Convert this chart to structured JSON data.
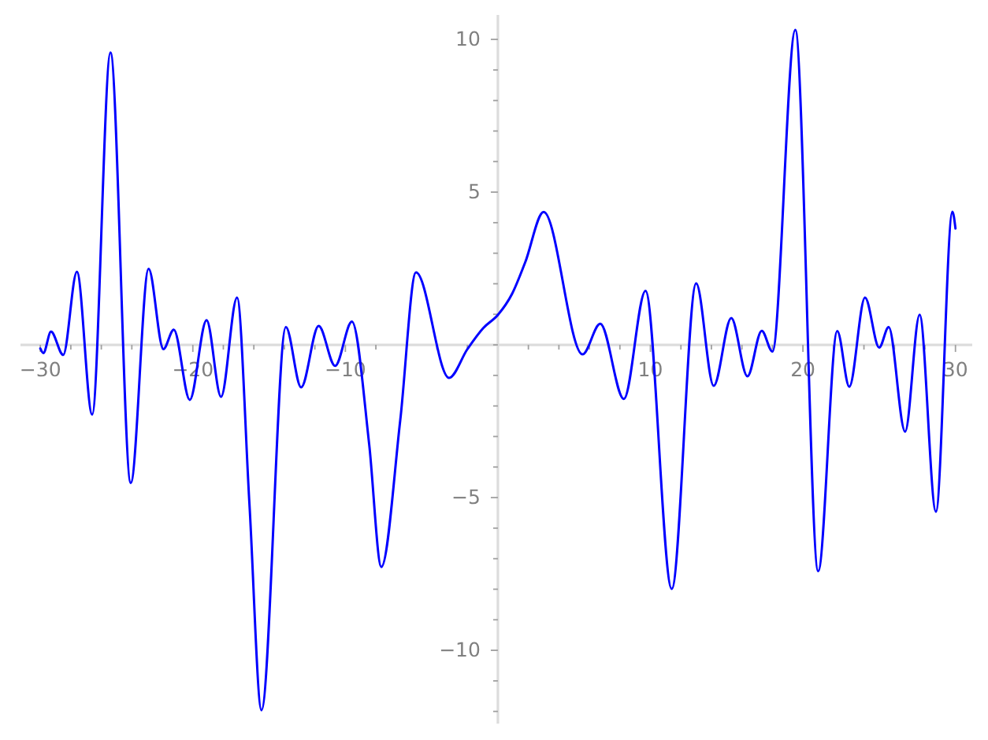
{
  "chart_data": {
    "type": "line",
    "x": [
      -30,
      -29.8,
      -29.3,
      -28.5,
      -27.6,
      -26.6,
      -25.4,
      -24.07,
      -22.9,
      -21.93,
      -21.25,
      -20.2,
      -19.1,
      -18.15,
      -17.1,
      -16.29,
      -15.5,
      -13.9,
      -12.9,
      -11.75,
      -10.67,
      -9.57,
      -8.44,
      -7.64,
      -6.4,
      -5.37,
      -3.2,
      -2.0,
      -0.96,
      0,
      0.93,
      1.79,
      3.0,
      5.55,
      6.71,
      8.26,
      9.68,
      11.4,
      13.0,
      14.15,
      15.3,
      16.36,
      17.3,
      18.0,
      19.5,
      21.0,
      22.25,
      23.04,
      24.07,
      25.0,
      25.62,
      26.7,
      27.65,
      28.72,
      29.8,
      30.0
    ],
    "values": [
      -0.12,
      -0.27,
      0.43,
      -0.33,
      2.39,
      -2.28,
      9.57,
      -4.52,
      2.49,
      -0.14,
      0.5,
      -1.8,
      0.81,
      -1.7,
      1.55,
      -5.2,
      -11.96,
      0.58,
      -1.39,
      0.62,
      -0.69,
      0.76,
      -3.25,
      -7.27,
      -2.46,
      2.37,
      -1.08,
      -0.14,
      0.55,
      0.98,
      1.67,
      2.7,
      4.35,
      -0.31,
      0.69,
      -1.77,
      1.77,
      -7.99,
      2.01,
      -1.34,
      0.88,
      -1.03,
      0.46,
      -0.22,
      10.31,
      -7.41,
      0.45,
      -1.37,
      1.55,
      -0.09,
      0.58,
      -2.84,
      0.99,
      -5.46,
      4.36,
      3.81
    ],
    "color": "#0000ff",
    "xlim": [
      -31.3,
      31.1
    ],
    "ylim": [
      -12.4,
      10.8
    ],
    "xticks": [
      {
        "value": -30,
        "label": "−30"
      },
      {
        "value": -28,
        "label": null
      },
      {
        "value": -26,
        "label": null
      },
      {
        "value": -24,
        "label": null
      },
      {
        "value": -22,
        "label": null
      },
      {
        "value": -20,
        "label": "−20"
      },
      {
        "value": -18,
        "label": null
      },
      {
        "value": -16,
        "label": null
      },
      {
        "value": -14,
        "label": null
      },
      {
        "value": -12,
        "label": null
      },
      {
        "value": -10,
        "label": "−10"
      },
      {
        "value": -8,
        "label": null
      },
      {
        "value": -6,
        "label": null
      },
      {
        "value": -4,
        "label": null
      },
      {
        "value": -2,
        "label": null
      },
      {
        "value": 0,
        "label": null
      },
      {
        "value": 2,
        "label": null
      },
      {
        "value": 4,
        "label": null
      },
      {
        "value": 6,
        "label": null
      },
      {
        "value": 8,
        "label": null
      },
      10,
      {
        "value": 12,
        "label": null
      },
      {
        "value": 14,
        "label": null
      },
      {
        "value": 16,
        "label": null
      },
      {
        "value": 18,
        "label": null
      },
      20,
      {
        "value": 22,
        "label": null
      },
      {
        "value": 24,
        "label": null
      },
      {
        "value": 26,
        "label": null
      },
      {
        "value": 28,
        "label": null
      },
      30
    ],
    "yticks": [
      {
        "value": -12,
        "label": null
      },
      {
        "value": -11,
        "label": null
      },
      {
        "value": -10,
        "label": "−10"
      },
      {
        "value": -9,
        "label": null
      },
      {
        "value": -8,
        "label": null
      },
      {
        "value": -7,
        "label": null
      },
      {
        "value": -6,
        "label": null
      },
      {
        "value": -5,
        "label": "−5"
      },
      {
        "value": -4,
        "label": null
      },
      {
        "value": -3,
        "label": null
      },
      {
        "value": -2,
        "label": null
      },
      {
        "value": -1,
        "label": null
      },
      {
        "value": 0,
        "label": null
      },
      {
        "value": 1,
        "label": null
      },
      {
        "value": 2,
        "label": null
      },
      {
        "value": 3,
        "label": null
      },
      {
        "value": 4,
        "label": null
      },
      5,
      {
        "value": 6,
        "label": null
      },
      {
        "value": 7,
        "label": null
      },
      {
        "value": 8,
        "label": null
      },
      {
        "value": 9,
        "label": null
      },
      10
    ]
  }
}
